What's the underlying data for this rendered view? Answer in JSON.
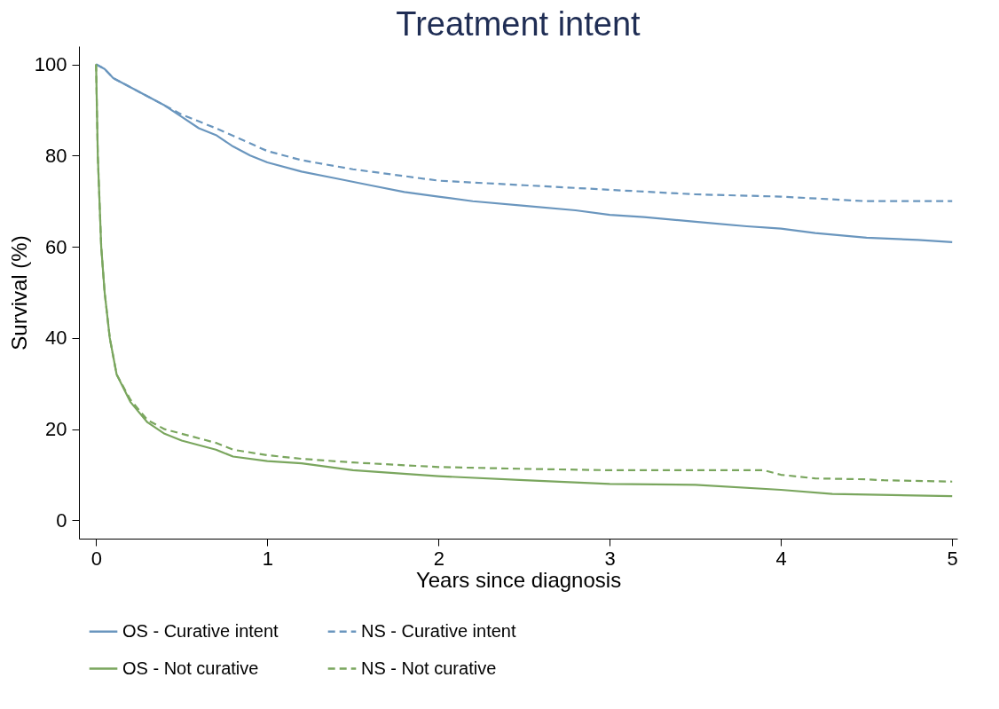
{
  "chart_data": {
    "type": "line",
    "title": "Treatment intent",
    "xlabel": "Years since diagnosis",
    "ylabel": "Survival (%)",
    "xlim": [
      -0.1,
      5.03
    ],
    "ylim": [
      -4,
      104
    ],
    "xticks": [
      0,
      1,
      2,
      3,
      4,
      5
    ],
    "yticks": [
      0,
      20,
      40,
      60,
      80,
      100
    ],
    "grid": false,
    "legend": "bottom",
    "marker": "none",
    "series": [
      {
        "name": "OS - Curative intent",
        "color": "#6a96be",
        "line_style": "solid",
        "x": [
          0,
          0.05,
          0.1,
          0.2,
          0.3,
          0.4,
          0.5,
          0.6,
          0.7,
          0.8,
          0.9,
          1,
          1.2,
          1.4,
          1.6,
          1.8,
          2,
          2.2,
          2.5,
          2.8,
          3,
          3.2,
          3.5,
          3.8,
          4,
          4.2,
          4.5,
          4.8,
          5
        ],
        "values": [
          100,
          99,
          97,
          95,
          93,
          91,
          88.5,
          86,
          84.5,
          82,
          80,
          78.5,
          76.5,
          75,
          73.5,
          72,
          71,
          70,
          69,
          68,
          67,
          66.5,
          65.5,
          64.5,
          64,
          63,
          62,
          61.5,
          61
        ]
      },
      {
        "name": "NS - Curative intent",
        "color": "#6a96be",
        "line_style": "dashed",
        "x": [
          0,
          0.05,
          0.1,
          0.2,
          0.3,
          0.4,
          0.5,
          0.7,
          1,
          1.2,
          1.5,
          1.8,
          2,
          2.5,
          3,
          3.5,
          4,
          4.5,
          5
        ],
        "values": [
          100,
          99,
          97,
          95,
          93,
          91,
          89,
          86,
          81,
          79,
          77,
          75.5,
          74.5,
          73.5,
          72.5,
          71.5,
          71,
          70,
          70
        ]
      },
      {
        "name": "OS - Not curative",
        "color": "#7aa65e",
        "line_style": "solid",
        "x": [
          0,
          0.01,
          0.03,
          0.05,
          0.08,
          0.12,
          0.2,
          0.3,
          0.4,
          0.5,
          0.7,
          0.8,
          1,
          1.2,
          1.5,
          2,
          2.5,
          3,
          3.5,
          4,
          4.3,
          5
        ],
        "values": [
          100,
          80,
          60,
          50,
          40,
          32,
          26,
          21.5,
          19,
          17.5,
          15.5,
          14,
          13,
          12.5,
          11,
          9.7,
          8.8,
          8,
          7.8,
          6.7,
          5.8,
          5.3
        ]
      },
      {
        "name": "NS - Not curative",
        "color": "#7aa65e",
        "line_style": "dashed",
        "x": [
          0,
          0.01,
          0.03,
          0.05,
          0.08,
          0.12,
          0.2,
          0.3,
          0.4,
          0.5,
          0.7,
          0.8,
          1,
          1.2,
          1.5,
          2,
          2.5,
          3,
          3.5,
          3.9,
          4,
          4.2,
          4.5,
          4.6,
          5
        ],
        "values": [
          100,
          80,
          60,
          50,
          40,
          32,
          26.5,
          22,
          20,
          19,
          17,
          15.5,
          14.3,
          13.5,
          12.7,
          11.7,
          11.3,
          11,
          11,
          11,
          10,
          9.2,
          9,
          8.8,
          8.5
        ]
      }
    ]
  }
}
